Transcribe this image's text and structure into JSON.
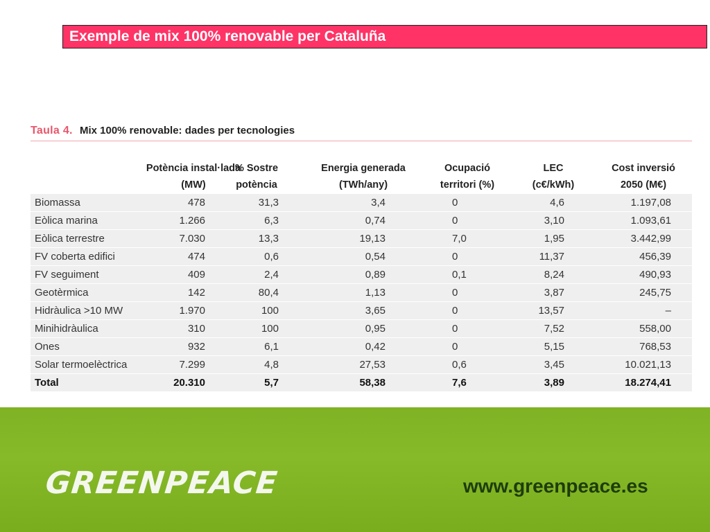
{
  "slide": {
    "title": "Exemple de mix 100% renovable per Cataluña"
  },
  "table": {
    "caption_number": "Taula 4.",
    "caption_text": "Mix 100% renovable: dades per tecnologies",
    "headers": [
      {
        "line1": "",
        "line2": ""
      },
      {
        "line1": "Potència instal·lada",
        "line2": "(MW)"
      },
      {
        "line1": "% Sostre",
        "line2": "potència"
      },
      {
        "line1": "Energia generada",
        "line2": "(TWh/any)"
      },
      {
        "line1": "Ocupació",
        "line2": "territori (%)"
      },
      {
        "line1": "LEC",
        "line2": "(c€/kWh)"
      },
      {
        "line1": "Cost inversió",
        "line2": "2050 (M€)"
      }
    ],
    "rows": [
      [
        "Biomassa",
        "478",
        "31,3",
        "3,4",
        "0",
        "4,6",
        "1.197,08"
      ],
      [
        "Eòlica marina",
        "1.266",
        "6,3",
        "0,74",
        "0",
        "3,10",
        "1.093,61"
      ],
      [
        "Eòlica terrestre",
        "7.030",
        "13,3",
        "19,13",
        "7,0",
        "1,95",
        "3.442,99"
      ],
      [
        "FV coberta edifici",
        "474",
        "0,6",
        "0,54",
        "0",
        "11,37",
        "456,39"
      ],
      [
        "FV seguiment",
        "409",
        "2,4",
        "0,89",
        "0,1",
        "8,24",
        "490,93"
      ],
      [
        "Geotèrmica",
        "142",
        "80,4",
        "1,13",
        "0",
        "3,87",
        "245,75"
      ],
      [
        "Hidràulica >10 MW",
        "1.970",
        "100",
        "3,65",
        "0",
        "13,57",
        "–"
      ],
      [
        "Minihidràulica",
        "310",
        "100",
        "0,95",
        "0",
        "7,52",
        "558,00"
      ],
      [
        "Ones",
        "932",
        "6,1",
        "0,42",
        "0",
        "5,15",
        "768,53"
      ],
      [
        "Solar termoelèctrica",
        "7.299",
        "4,8",
        "27,53",
        "0,6",
        "3,45",
        "10.021,13"
      ]
    ],
    "total": [
      "Total",
      "20.310",
      "5,7",
      "58,38",
      "7,6",
      "3,89",
      "18.274,41"
    ]
  },
  "footer": {
    "logo_text": "GREENPEACE",
    "url": "www.greenpeace.es"
  },
  "colors": {
    "title_bar": "#ff3366",
    "caption_accent": "#e8576b",
    "row_background": "#efefef",
    "footer_green": "#86ba28",
    "url_text": "#1e3c0c"
  }
}
